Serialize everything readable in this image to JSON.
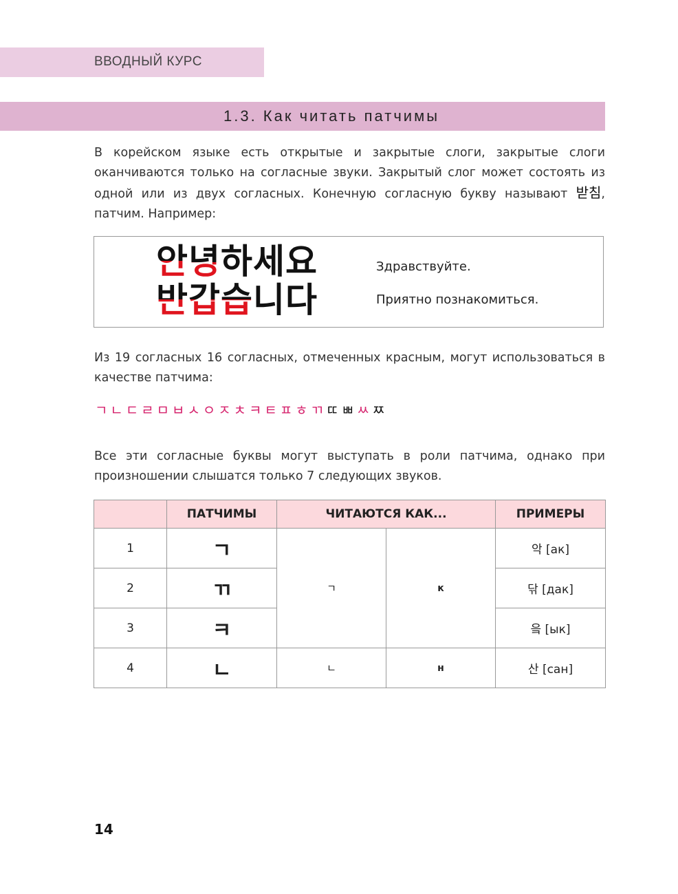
{
  "running_header": "ВВОДНЫЙ КУРС",
  "section_title": "1.3. Как читать патчимы",
  "intro": {
    "text": "В корейском языке есть открытые и закрытые слоги, закрытые слоги оканчиваются только на согласные звуки. Закрытый слог может состоять из одной или из двух согласных. Конечную согласную букву называют ",
    "korean_term": "받침",
    "text_after": ", патчим. Например:"
  },
  "example_box": {
    "line1": {
      "syllables": [
        "안",
        "녕",
        "하",
        "세",
        "요"
      ],
      "highlighted": [
        0,
        1
      ],
      "translation": "Здравствуйте."
    },
    "line2": {
      "syllables": [
        "반",
        "갑",
        "습",
        "니",
        "다"
      ],
      "highlighted": [
        0,
        1,
        2
      ],
      "translation": "Приятно познакомиться."
    },
    "highlight_color": "#e0141e"
  },
  "para2": "Из 19 согласных 16 согласных, отмеченных красным, могут использоваться в качестве патчима:",
  "consonants": [
    {
      "c": "ㄱ",
      "marked": true
    },
    {
      "c": "ㄴ",
      "marked": true
    },
    {
      "c": "ㄷ",
      "marked": true
    },
    {
      "c": "ㄹ",
      "marked": true
    },
    {
      "c": "ㅁ",
      "marked": true
    },
    {
      "c": "ㅂ",
      "marked": true
    },
    {
      "c": "ㅅ",
      "marked": true
    },
    {
      "c": "ㅇ",
      "marked": true
    },
    {
      "c": "ㅈ",
      "marked": true
    },
    {
      "c": "ㅊ",
      "marked": true
    },
    {
      "c": "ㅋ",
      "marked": true
    },
    {
      "c": "ㅌ",
      "marked": true
    },
    {
      "c": "ㅍ",
      "marked": true
    },
    {
      "c": "ㅎ",
      "marked": true
    },
    {
      "c": "ㄲ",
      "marked": true
    },
    {
      "c": "ㄸ",
      "marked": false
    },
    {
      "c": "ㅃ",
      "marked": false
    },
    {
      "c": "ㅆ",
      "marked": true
    },
    {
      "c": "ㅉ",
      "marked": false
    }
  ],
  "marked_color": "#d6246e",
  "para3": "Все эти согласные буквы могут выступать в роли патчима, однако при произношении слышатся только 7 следующих звуков.",
  "table": {
    "headers": [
      "",
      "ПАТЧИМЫ",
      "ЧИТАЮТСЯ КАК...",
      "ПРИМЕРЫ"
    ],
    "header_bg": "#fcd9dd",
    "rows": [
      {
        "n": "1",
        "patchim": "ㄱ",
        "example": "악 [ак]"
      },
      {
        "n": "2",
        "patchim": "ㄲ",
        "example": "닦 [дак]"
      },
      {
        "n": "3",
        "patchim": "ㅋ",
        "example": "읔 [ык]"
      },
      {
        "n": "4",
        "patchim": "ㄴ",
        "example": "산 [сан]"
      }
    ],
    "groups": [
      {
        "jamo": "ㄱ",
        "sound": "к"
      },
      {
        "jamo": "ㄴ",
        "sound": "н"
      }
    ]
  },
  "page_number": "14"
}
